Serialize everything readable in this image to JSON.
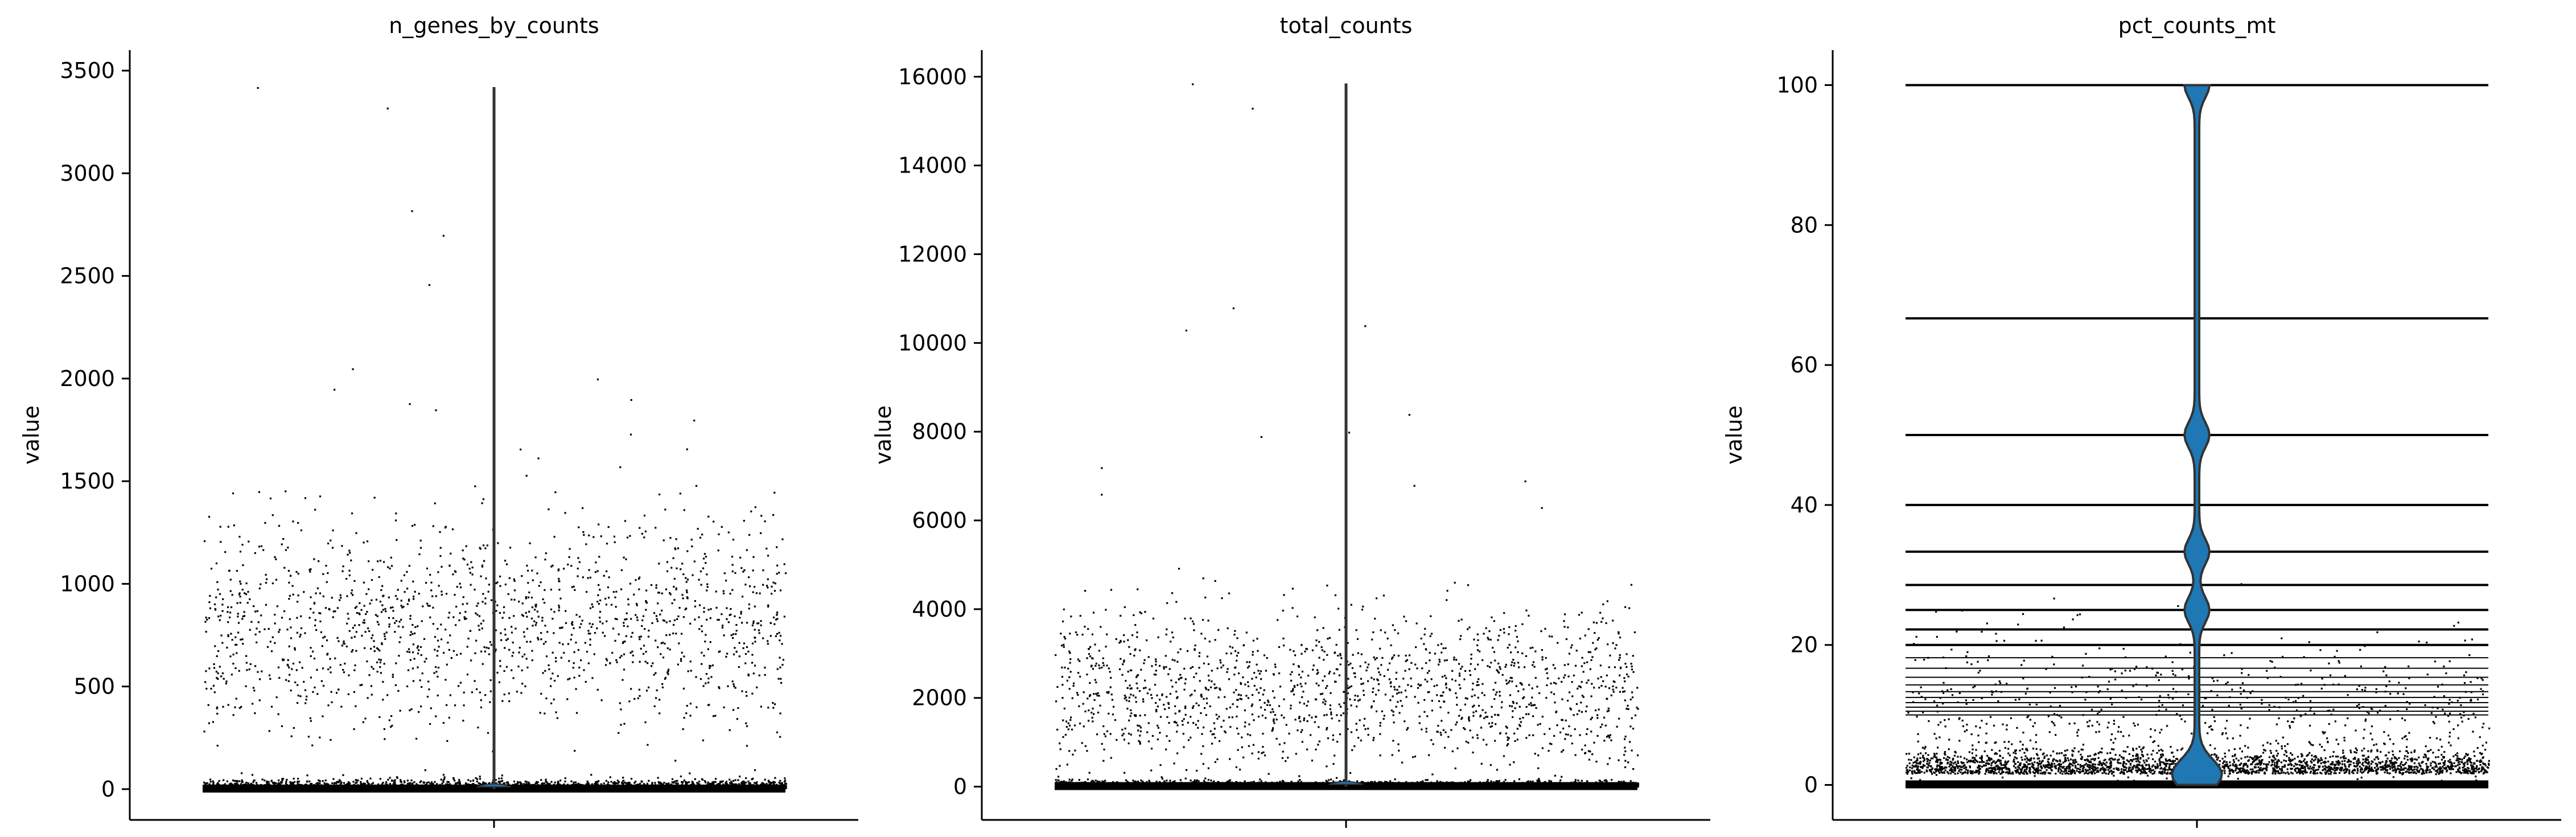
{
  "chart_data": [
    {
      "type": "violin",
      "title": "n_genes_by_counts",
      "ylabel": "value",
      "xlabel": "",
      "ylim": [
        -150,
        3600
      ],
      "yticks": [
        0,
        500,
        1000,
        1500,
        2000,
        2500,
        3000,
        3500
      ],
      "ytick_labels": [
        "0",
        "500",
        "1000",
        "1500",
        "2000",
        "2500",
        "3000",
        "3500"
      ],
      "violin": {
        "min": 0,
        "max": 3420,
        "median": 0,
        "color": "#1f77b4"
      },
      "jitter": {
        "base_cluster": {
          "center": 10,
          "spread": 40,
          "count": 1800
        },
        "main_cluster": {
          "center": 800,
          "spread": 260,
          "count": 1500
        },
        "outliers": [
          1900,
          1950,
          2000,
          2050,
          2700,
          2820,
          2460,
          3420,
          3320,
          1850,
          1750,
          1800,
          1880
        ]
      }
    },
    {
      "type": "violin",
      "title": "total_counts",
      "ylabel": "value",
      "xlabel": "",
      "ylim": [
        -750,
        16600
      ],
      "yticks": [
        0,
        2000,
        4000,
        6000,
        8000,
        10000,
        12000,
        14000,
        16000
      ],
      "ytick_labels": [
        "0",
        "2000",
        "4000",
        "6000",
        "8000",
        "10000",
        "12000",
        "14000",
        "16000"
      ],
      "violin": {
        "min": 0,
        "max": 15850,
        "median": 0,
        "color": "#1f77b4"
      },
      "jitter": {
        "base_cluster": {
          "center": 30,
          "spread": 120,
          "count": 1800
        },
        "main_cluster": {
          "center": 2200,
          "spread": 900,
          "count": 1500
        },
        "outliers": [
          15850,
          15300,
          10800,
          10400,
          10300,
          8000,
          8400,
          7900,
          7200,
          6900,
          6800,
          6300,
          6600
        ]
      }
    },
    {
      "type": "violin",
      "title": "pct_counts_mt",
      "ylabel": "value",
      "xlabel": "",
      "ylim": [
        -5,
        105
      ],
      "yticks": [
        0,
        20,
        40,
        60,
        80,
        100
      ],
      "ytick_labels": [
        "0",
        "20",
        "40",
        "60",
        "80",
        "100"
      ],
      "violin": {
        "min": 0,
        "max": 100,
        "median": 2,
        "color": "#1f77b4"
      },
      "level_lines": [
        100,
        66.67,
        50,
        40,
        33.33,
        28.57,
        25,
        22.22,
        20,
        18.18,
        16.67,
        15.38,
        14.29,
        13.33,
        12.5,
        11.76,
        11.11,
        10.53,
        10
      ],
      "jitter": {
        "base_cluster": {
          "center": 2,
          "spread": 3,
          "count": 2200
        },
        "main_cluster": {
          "center": 10,
          "spread": 6,
          "count": 700
        },
        "outliers": []
      }
    }
  ]
}
